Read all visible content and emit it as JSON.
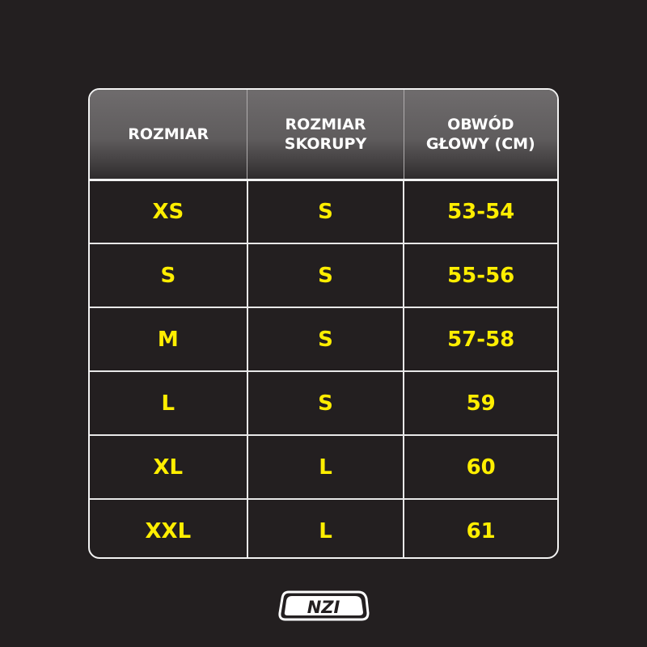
{
  "table": {
    "headers": [
      "ROZMIAR",
      "ROZMIAR\nSKORUPY",
      "OBWÓD\nGŁOWY (CM)"
    ],
    "rows": [
      [
        "XS",
        "S",
        "53-54"
      ],
      [
        "S",
        "S",
        "55-56"
      ],
      [
        "M",
        "S",
        "57-58"
      ],
      [
        "L",
        "S",
        "59"
      ],
      [
        "XL",
        "L",
        "60"
      ],
      [
        "XXL",
        "L",
        "61"
      ]
    ]
  },
  "logo": {
    "text": "NZI"
  },
  "colors": {
    "background": "#231f20",
    "value_text": "#ffee00",
    "header_text": "#ffffff",
    "border": "#f2f2f2"
  }
}
